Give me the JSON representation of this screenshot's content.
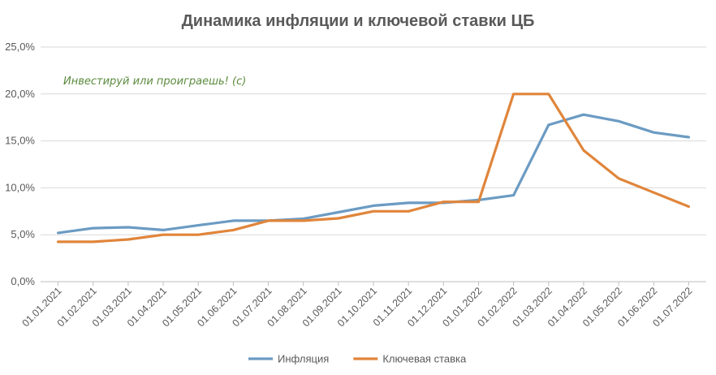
{
  "chart_data": {
    "type": "line",
    "title": "Динамика инфляции и ключевой ставки ЦБ",
    "watermark": "Инвестируй или проиграешь! (с)",
    "xlabel": "",
    "ylabel": "",
    "ylim": [
      0,
      25
    ],
    "yticks": [
      "0,0%",
      "5,0%",
      "10,0%",
      "15,0%",
      "20,0%",
      "25,0%"
    ],
    "categories": [
      "01.01.2021",
      "01.02.2021",
      "01.03.2021",
      "01.04.2021",
      "01.05.2021",
      "01.06.2021",
      "01.07.2021",
      "01.08.2021",
      "01.09.2021",
      "01.10.2021",
      "01.11.2021",
      "01.12.2021",
      "01.01.2022",
      "01.02.2022",
      "01.03.2022",
      "01.04.2022",
      "01.05.2022",
      "01.06.2022",
      "01.07.2022"
    ],
    "grid": true,
    "legend_position": "bottom",
    "series": [
      {
        "name": "Инфляция",
        "color": "#6b9bc3",
        "values": [
          5.2,
          5.7,
          5.8,
          5.5,
          6.0,
          6.5,
          6.5,
          6.7,
          7.4,
          8.1,
          8.4,
          8.4,
          8.7,
          9.2,
          16.7,
          17.8,
          17.1,
          15.9,
          15.4
        ]
      },
      {
        "name": "Ключевая ставка",
        "color": "#e0853b",
        "values": [
          4.25,
          4.25,
          4.5,
          5.0,
          5.0,
          5.5,
          6.5,
          6.5,
          6.75,
          7.5,
          7.5,
          8.5,
          8.5,
          20.0,
          20.0,
          14.0,
          11.0,
          9.5,
          8.0
        ]
      }
    ]
  }
}
